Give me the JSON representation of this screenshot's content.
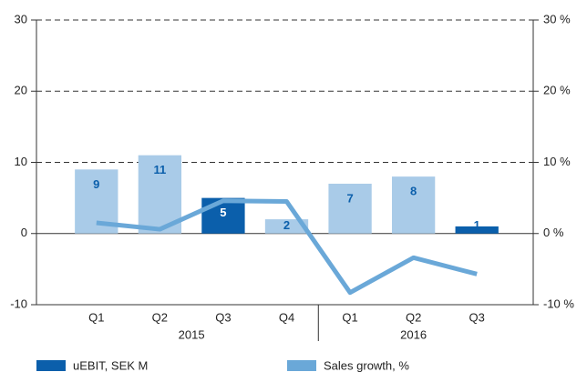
{
  "chart_data": {
    "type": "bar",
    "categories": [
      "Q1",
      "Q2",
      "Q3",
      "Q4",
      "Q1",
      "Q2",
      "Q3"
    ],
    "groups": [
      {
        "label": "2015",
        "size": 4
      },
      {
        "label": "2016",
        "size": 3
      }
    ],
    "series": [
      {
        "name": "uEBIT, SEK M",
        "type": "bar",
        "color": "#0b5fab",
        "colors": [
          "#a9cbe8",
          "#a9cbe8",
          "#0b5fab",
          "#a9cbe8",
          "#a9cbe8",
          "#a9cbe8",
          "#0b5fab"
        ],
        "values": [
          9,
          11,
          5,
          2,
          7,
          8,
          1
        ]
      },
      {
        "name": "Sales growth, %",
        "type": "line",
        "axis": "y2",
        "color": "#6aa8d8",
        "values": [
          1.5,
          0.6,
          4.6,
          4.5,
          -8.3,
          -3.4,
          -5.7
        ]
      }
    ],
    "ylim": [
      -10,
      30
    ],
    "yticks": [
      -10,
      0,
      10,
      20,
      30
    ],
    "y2lim": [
      -10,
      30
    ],
    "y2ticks": [
      {
        "value": -10,
        "label": "-10 %"
      },
      {
        "value": 0,
        "label": "0 %"
      },
      {
        "value": 10,
        "label": "10 %"
      },
      {
        "value": 20,
        "label": "20 %"
      },
      {
        "value": 30,
        "label": "30 %"
      }
    ],
    "grid": true
  }
}
